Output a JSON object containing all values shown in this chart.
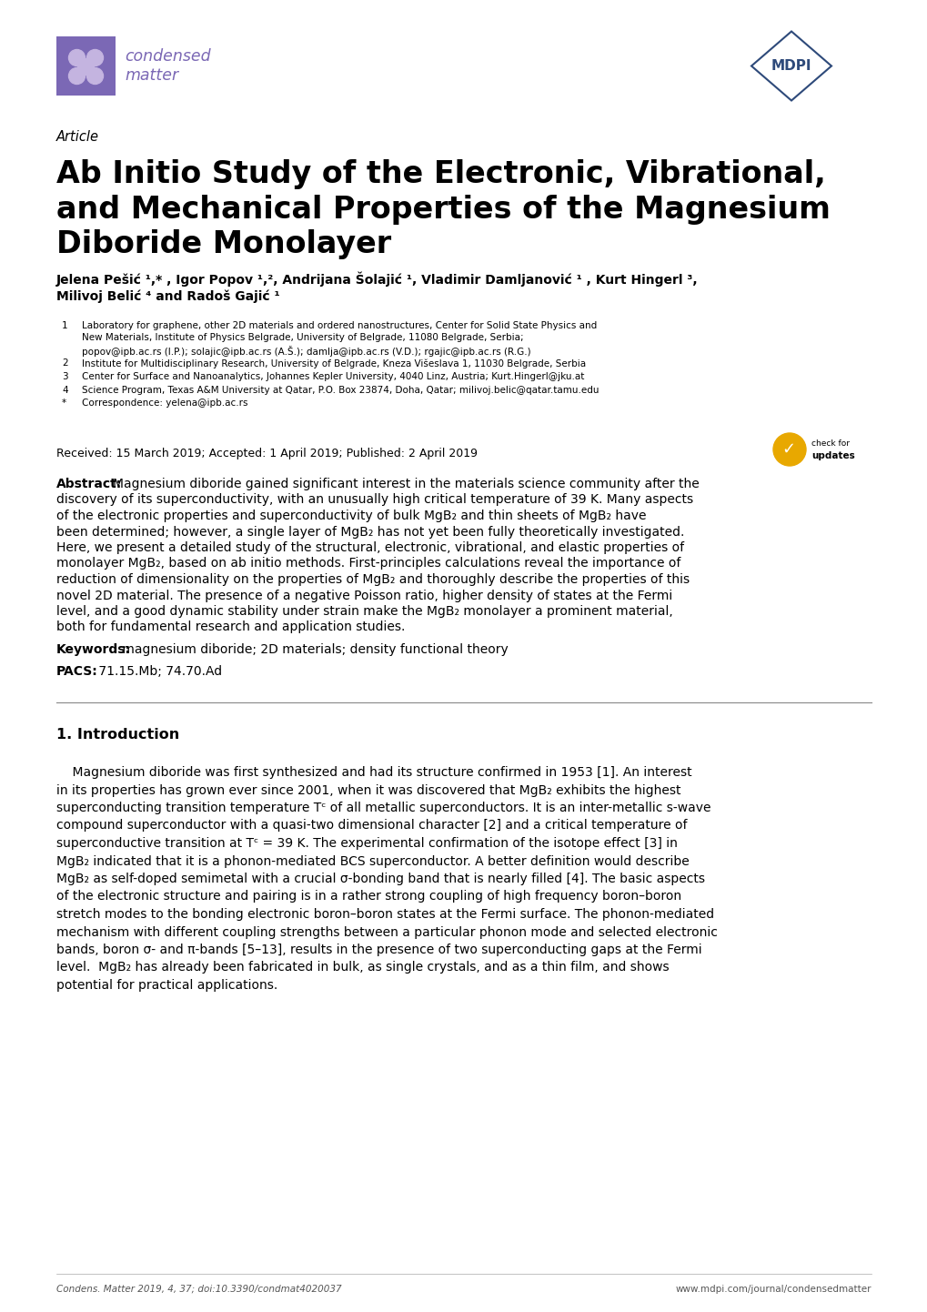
{
  "bg_color": "#ffffff",
  "journal_purple": "#7b68b5",
  "journal_purple_light": "#c4b4e0",
  "mdpi_blue": "#2e4a7a",
  "article_label": "Article",
  "title": "Ab Initio Study of the Electronic, Vibrational,\nand Mechanical Properties of the Magnesium\nDiboride Monolayer",
  "authors_line1": "Jelena Pešić ¹,* , Igor Popov ¹,², Andrijana Šolajić ¹, Vladimir Damljanović ¹ , Kurt Hingerl ³,",
  "authors_line2": "Milivoj Belić ⁴ and Radoš Gajić ¹",
  "affils": [
    [
      "1",
      "Laboratory for graphene, other 2D materials and ordered nanostructures, Center for Solid State Physics and\nNew Materials, Institute of Physics Belgrade, University of Belgrade, 11080 Belgrade, Serbia;\npopov@ipb.ac.rs (I.P.); solajic@ipb.ac.rs (A.Š.); damlja@ipb.ac.rs (V.D.); rgajic@ipb.ac.rs (R.G.)"
    ],
    [
      "2",
      "Institute for Multidisciplinary Research, University of Belgrade, Kneza Višeslava 1, 11030 Belgrade, Serbia"
    ],
    [
      "3",
      "Center for Surface and Nanoanalytics, Johannes Kepler University, 4040 Linz, Austria; Kurt.Hingerl@jku.at"
    ],
    [
      "4",
      "Science Program, Texas A&M University at Qatar, P.O. Box 23874, Doha, Qatar; milivoj.belic@qatar.tamu.edu"
    ],
    [
      "*",
      "Correspondence: yelena@ipb.ac.rs"
    ]
  ],
  "received": "Received: 15 March 2019; Accepted: 1 April 2019; Published: 2 April 2019",
  "abstract_bold": "Abstract:",
  "abstract_lines": [
    "Magnesium diboride gained significant interest in the materials science community after the",
    "discovery of its superconductivity, with an unusually high critical temperature of 39 K. Many aspects",
    "of the electronic properties and superconductivity of bulk MgB₂ and thin sheets of MgB₂ have",
    "been determined; however, a single layer of MgB₂ has not yet been fully theoretically investigated.",
    "Here, we present a detailed study of the structural, electronic, vibrational, and elastic properties of",
    "monolayer MgB₂, based on ab initio methods. First-principles calculations reveal the importance of",
    "reduction of dimensionality on the properties of MgB₂ and thoroughly describe the properties of this",
    "novel 2D material. The presence of a negative Poisson ratio, higher density of states at the Fermi",
    "level, and a good dynamic stability under strain make the MgB₂ monolayer a prominent material,",
    "both for fundamental research and application studies."
  ],
  "keywords_bold": "Keywords:",
  "keywords_text": " magnesium diboride; 2D materials; density functional theory",
  "pacs_bold": "PACS:",
  "pacs_text": " 71.15.Mb; 74.70.Ad",
  "intro_title": "1. Introduction",
  "intro_lines": [
    "    Magnesium diboride was first synthesized and had its structure confirmed in 1953 [1]. An interest",
    "in its properties has grown ever since 2001, when it was discovered that MgB₂ exhibits the highest",
    "superconducting transition temperature Tᶜ of all metallic superconductors. It is an inter-metallic s-wave",
    "compound superconductor with a quasi-two dimensional character [2] and a critical temperature of",
    "superconductive transition at Tᶜ = 39 K. The experimental confirmation of the isotope effect [3] in",
    "MgB₂ indicated that it is a phonon-mediated BCS superconductor. A better definition would describe",
    "MgB₂ as self-doped semimetal with a crucial σ-bonding band that is nearly filled [4]. The basic aspects",
    "of the electronic structure and pairing is in a rather strong coupling of high frequency boron–boron",
    "stretch modes to the bonding electronic boron–boron states at the Fermi surface. The phonon-mediated",
    "mechanism with different coupling strengths between a particular phonon mode and selected electronic",
    "bands, boron σ- and π-bands [5–13], results in the presence of two superconducting gaps at the Fermi",
    "level.  MgB₂ has already been fabricated in bulk, as single crystals, and as a thin film, and shows",
    "potential for practical applications."
  ],
  "footer_left": "Condens. Matter 2019, 4, 37; doi:10.3390/condmat4020037",
  "footer_right": "www.mdpi.com/journal/condensedmatter",
  "ML": 62,
  "MR": 958,
  "PH": 1442,
  "PW": 1020
}
